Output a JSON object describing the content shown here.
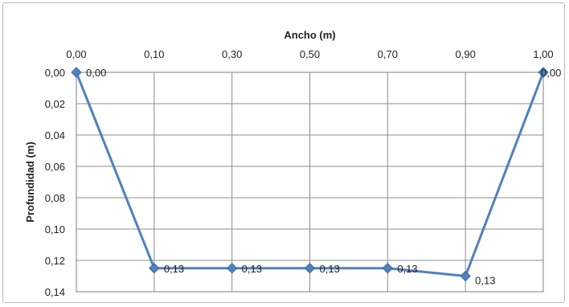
{
  "chart_data": {
    "type": "line",
    "title": "",
    "xlabel": "Ancho (m)",
    "ylabel": "Profundidad (m)",
    "x_axis_position": "top",
    "y_axis_inverted": true,
    "categories": [
      "0,00",
      "0,10",
      "0,30",
      "0,50",
      "0,70",
      "0,90",
      "1,00"
    ],
    "series": [
      {
        "values": [
          0.0,
          0.125,
          0.125,
          0.125,
          0.125,
          0.13,
          0.0
        ],
        "data_labels": [
          "0,00",
          "0,13",
          "0,13",
          "0,13",
          "0,13",
          "0,13",
          "0,00"
        ],
        "color": "#4f81bd"
      }
    ],
    "y_ticks": [
      "0,00",
      "0,02",
      "0,04",
      "0,06",
      "0,08",
      "0,10",
      "0,12",
      "0,14"
    ],
    "ylim": [
      0,
      0.14
    ],
    "grid": true,
    "legend": "none"
  }
}
